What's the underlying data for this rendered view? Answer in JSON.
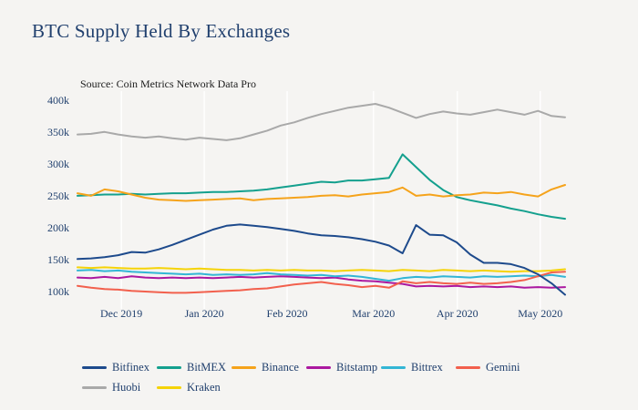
{
  "colors": {
    "background": "#f5f4f2",
    "axis_text": "#21406e",
    "title_text": "#21406e",
    "source_text": "#1c1c1c",
    "gridline": "#ffffff"
  },
  "chart_data": {
    "type": "line",
    "title": "BTC Supply Held By Exchanges",
    "source": "Source: Coin Metrics Network Data Pro",
    "xlabel": "",
    "ylabel": "",
    "unit": "thousand BTC",
    "ylim": [
      80,
      414
    ],
    "grid": "vertical-month-gridlines-only",
    "legend_position": "bottom",
    "x_range": [
      "mid Nov 2019",
      "mid May 2020"
    ],
    "y_ticks": [
      100,
      150,
      200,
      250,
      300,
      350,
      400
    ],
    "y_tick_suffix": "k",
    "x_ticks": [
      {
        "label": "Dec 2019",
        "f": 0.09
      },
      {
        "label": "Jan 2020",
        "f": 0.26
      },
      {
        "label": "Feb 2020",
        "f": 0.43
      },
      {
        "label": "Mar 2020",
        "f": 0.607
      },
      {
        "label": "Apr 2020",
        "f": 0.779
      },
      {
        "label": "May 2020",
        "f": 0.949
      }
    ],
    "series": [
      {
        "name": "Bitfinex",
        "color": "#1d4a8c",
        "z": 8,
        "values": [
          151,
          152,
          154,
          157,
          162,
          161,
          166,
          173,
          181,
          189,
          197,
          203,
          205,
          203,
          201,
          198,
          195,
          191,
          188,
          187,
          185,
          182,
          178,
          172,
          160,
          204,
          189,
          188,
          177,
          158,
          145,
          145,
          143,
          137,
          127,
          113,
          95
        ]
      },
      {
        "name": "BitMEX",
        "color": "#14a08e",
        "z": 2,
        "values": [
          250,
          251,
          252,
          252,
          253,
          252,
          253,
          254,
          254,
          255,
          256,
          256,
          257,
          258,
          260,
          263,
          266,
          269,
          272,
          271,
          274,
          274,
          276,
          278,
          315,
          295,
          275,
          259,
          248,
          243,
          239,
          235,
          230,
          226,
          221,
          217,
          214
        ]
      },
      {
        "name": "Binance",
        "color": "#f5a31b",
        "z": 3,
        "values": [
          254,
          250,
          260,
          257,
          252,
          247,
          244,
          243,
          242,
          243,
          244,
          245,
          246,
          243,
          245,
          246,
          247,
          248,
          250,
          251,
          249,
          252,
          254,
          256,
          263,
          250,
          252,
          249,
          251,
          252,
          255,
          254,
          256,
          252,
          249,
          260,
          267
        ]
      },
      {
        "name": "Bitstamp",
        "color": "#ab18a0",
        "z": 4,
        "values": [
          122,
          121,
          123,
          121,
          124,
          122,
          121,
          122,
          121,
          122,
          121,
          122,
          123,
          122,
          123,
          124,
          123,
          122,
          121,
          122,
          119,
          117,
          116,
          114,
          112,
          108,
          109,
          108,
          109,
          107,
          108,
          107,
          108,
          106,
          107,
          106,
          107
        ]
      },
      {
        "name": "Bittrex",
        "color": "#33b6d5",
        "z": 5,
        "values": [
          133,
          134,
          132,
          133,
          131,
          130,
          129,
          128,
          127,
          128,
          126,
          127,
          126,
          127,
          129,
          127,
          126,
          125,
          126,
          124,
          125,
          123,
          120,
          117,
          121,
          123,
          122,
          124,
          123,
          122,
          124,
          123,
          124,
          125,
          124,
          126,
          123
        ]
      },
      {
        "name": "Gemini",
        "color": "#f2604d",
        "z": 6,
        "values": [
          109,
          106,
          104,
          103,
          101,
          100,
          99,
          98,
          98,
          99,
          100,
          101,
          102,
          104,
          105,
          108,
          111,
          113,
          115,
          112,
          110,
          107,
          109,
          106,
          116,
          113,
          115,
          113,
          112,
          114,
          112,
          113,
          115,
          118,
          124,
          130,
          131
        ]
      },
      {
        "name": "Huobi",
        "color": "#a9a9a9",
        "z": 1,
        "values": [
          346,
          347,
          350,
          346,
          343,
          341,
          343,
          340,
          338,
          341,
          339,
          337,
          340,
          346,
          352,
          360,
          365,
          372,
          378,
          383,
          388,
          391,
          394,
          388,
          380,
          372,
          378,
          382,
          379,
          377,
          381,
          385,
          381,
          377,
          383,
          375,
          373
        ]
      },
      {
        "name": "Kraken",
        "color": "#f5d308",
        "z": 7,
        "values": [
          138,
          137,
          138,
          137,
          136,
          136,
          137,
          136,
          135,
          136,
          135,
          134,
          134,
          133,
          134,
          133,
          134,
          133,
          133,
          132,
          133,
          134,
          133,
          132,
          134,
          133,
          132,
          134,
          133,
          132,
          133,
          132,
          131,
          132,
          132,
          133,
          135
        ]
      }
    ]
  }
}
